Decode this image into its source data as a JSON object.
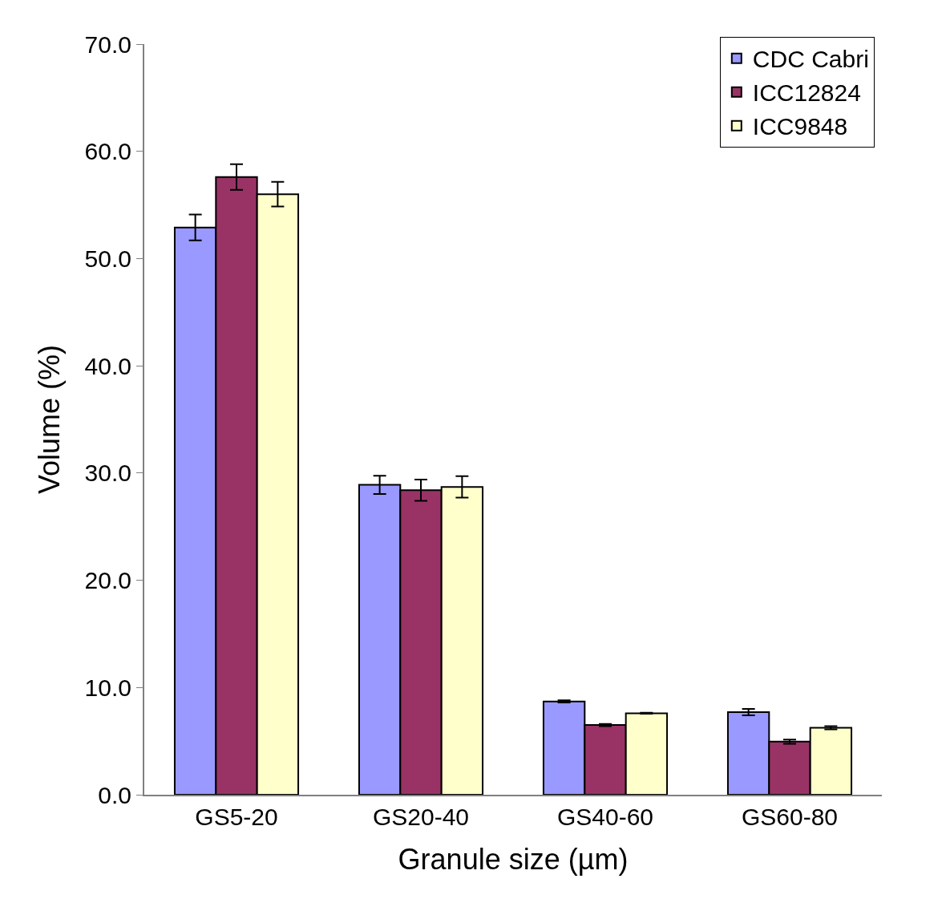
{
  "chart_data": {
    "type": "bar",
    "xlabel": "Granule size (µm)",
    "ylabel": "Volume (%)",
    "categories": [
      "GS5-20",
      "GS20-40",
      "GS40-60",
      "GS60-80"
    ],
    "series": [
      {
        "name": "CDC Cabri",
        "color": "#9999ff",
        "values": [
          52.9,
          28.9,
          8.7,
          7.7
        ],
        "errors": [
          1.2,
          0.85,
          0.1,
          0.3
        ]
      },
      {
        "name": "ICC12824",
        "color": "#993366",
        "values": [
          57.6,
          28.4,
          6.5,
          4.95
        ],
        "errors": [
          1.2,
          1.0,
          0.1,
          0.2
        ]
      },
      {
        "name": "ICC9848",
        "color": "#ffffcc",
        "values": [
          56.0,
          28.7,
          7.6,
          6.25
        ],
        "errors": [
          1.15,
          1.0,
          0.05,
          0.15
        ]
      }
    ],
    "ylim": [
      0,
      70
    ],
    "yticks": [
      {
        "value": 0,
        "label": "0.0"
      },
      {
        "value": 10,
        "label": "10.0"
      },
      {
        "value": 20,
        "label": "20.0"
      },
      {
        "value": 30,
        "label": "30.0"
      },
      {
        "value": 40,
        "label": "40.0"
      },
      {
        "value": 50,
        "label": "50.0"
      },
      {
        "value": 60,
        "label": "60.0"
      },
      {
        "value": 70,
        "label": "70.0"
      }
    ],
    "grid": false,
    "legend": "top right"
  }
}
